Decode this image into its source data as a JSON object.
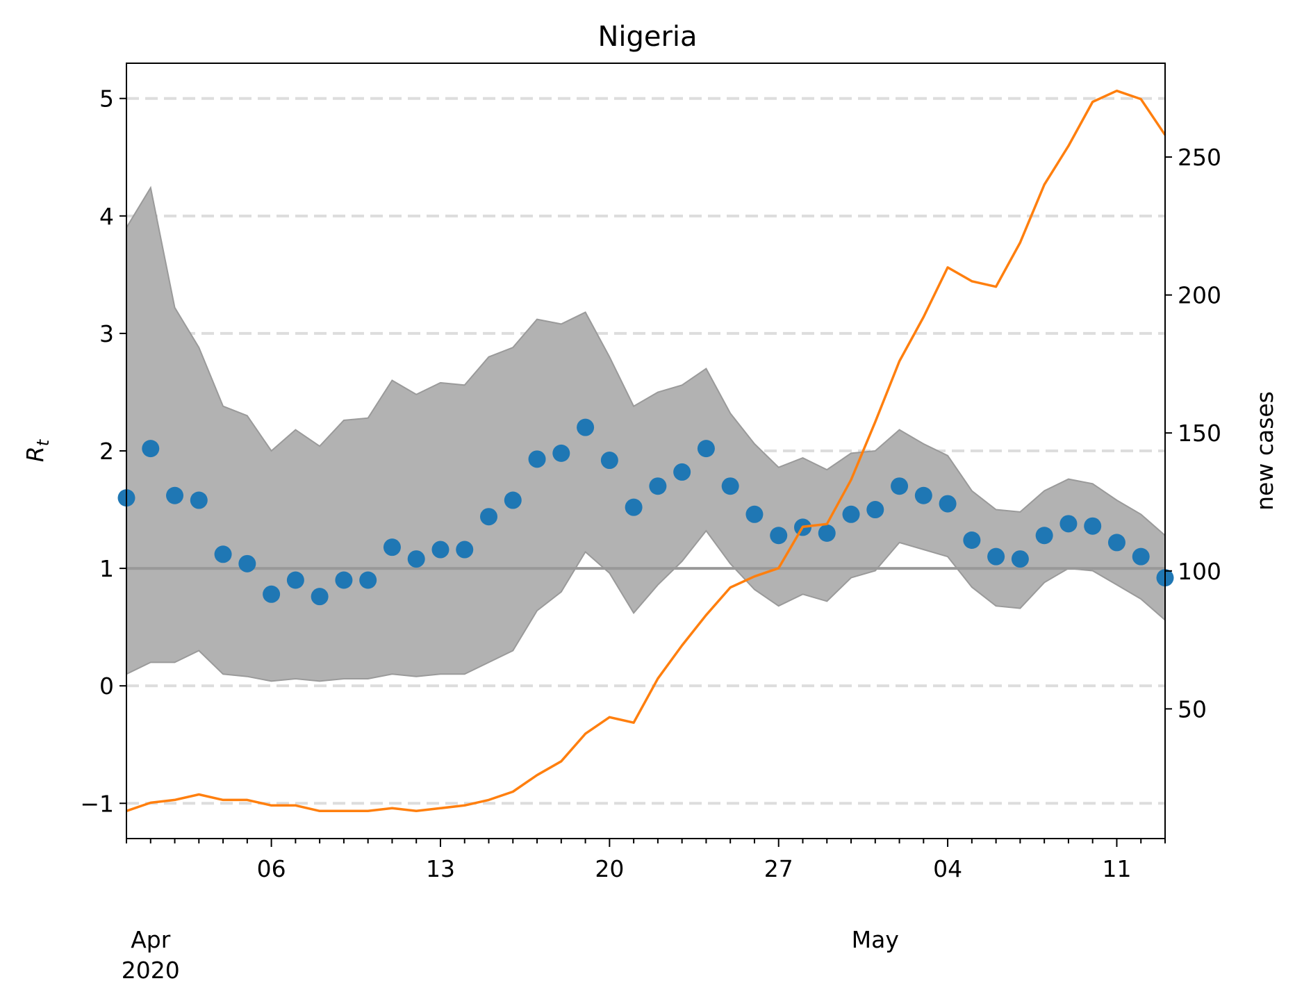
{
  "chart_data": {
    "type": "line",
    "title": "Nigeria",
    "ylabel_left": "R",
    "ylabel_left_subscript": "t",
    "ylabel_right": "new cases",
    "xlabel": "",
    "x_dates": [
      "2020-03-31",
      "2020-04-01",
      "2020-04-02",
      "2020-04-03",
      "2020-04-04",
      "2020-04-05",
      "2020-04-06",
      "2020-04-07",
      "2020-04-08",
      "2020-04-09",
      "2020-04-10",
      "2020-04-11",
      "2020-04-12",
      "2020-04-13",
      "2020-04-14",
      "2020-04-15",
      "2020-04-16",
      "2020-04-17",
      "2020-04-18",
      "2020-04-19",
      "2020-04-20",
      "2020-04-21",
      "2020-04-22",
      "2020-04-23",
      "2020-04-24",
      "2020-04-25",
      "2020-04-26",
      "2020-04-27",
      "2020-04-28",
      "2020-04-29",
      "2020-04-30",
      "2020-05-01",
      "2020-05-02",
      "2020-05-03",
      "2020-05-04",
      "2020-05-05",
      "2020-05-06",
      "2020-05-07",
      "2020-05-08",
      "2020-05-09",
      "2020-05-10",
      "2020-05-11",
      "2020-05-12",
      "2020-05-13"
    ],
    "x_ticks_major": [
      {
        "date": "2020-04-06",
        "label": "06"
      },
      {
        "date": "2020-04-13",
        "label": "13"
      },
      {
        "date": "2020-04-20",
        "label": "20"
      },
      {
        "date": "2020-04-27",
        "label": "27"
      },
      {
        "date": "2020-05-04",
        "label": "04"
      },
      {
        "date": "2020-05-11",
        "label": "11"
      }
    ],
    "x_month_labels": [
      {
        "date": "2020-04-01",
        "label": "Apr",
        "sub": "2020"
      },
      {
        "date": "2020-05-01",
        "label": "May",
        "sub": ""
      }
    ],
    "ylim_left": [
      -1.3,
      5.3
    ],
    "yticks_left": [
      -1,
      0,
      1,
      2,
      3,
      4,
      5
    ],
    "ylim_right": [
      3,
      284
    ],
    "yticks_right": [
      50,
      100,
      150,
      200,
      250
    ],
    "reference_line": 1,
    "grid": "dashed horizontal at left y-ticks",
    "series": [
      {
        "type": "scatter",
        "axis": "left",
        "color": "#1f77b4",
        "values": [
          1.6,
          2.02,
          1.62,
          1.58,
          1.12,
          1.04,
          0.78,
          0.9,
          0.76,
          0.9,
          0.9,
          1.18,
          1.08,
          1.16,
          1.16,
          1.44,
          1.58,
          1.93,
          1.98,
          2.2,
          1.92,
          1.52,
          1.7,
          1.82,
          2.02,
          1.7,
          1.46,
          1.28,
          1.35,
          1.3,
          1.46,
          1.5,
          1.7,
          1.62,
          1.55,
          1.24,
          1.1,
          1.08,
          1.28,
          1.38,
          1.36,
          1.22,
          1.1,
          0.92
        ]
      },
      {
        "type": "band",
        "axis": "left",
        "color": "#b2b2b2",
        "lower": [
          0.1,
          0.2,
          0.2,
          0.3,
          0.1,
          0.08,
          0.04,
          0.06,
          0.04,
          0.06,
          0.06,
          0.1,
          0.08,
          0.1,
          0.1,
          0.2,
          0.3,
          0.64,
          0.8,
          1.14,
          0.96,
          0.62,
          0.86,
          1.06,
          1.32,
          1.04,
          0.82,
          0.68,
          0.78,
          0.72,
          0.92,
          0.98,
          1.22,
          1.16,
          1.1,
          0.84,
          0.68,
          0.66,
          0.88,
          1.0,
          0.98,
          0.86,
          0.74,
          0.56
        ],
        "upper": [
          3.9,
          4.24,
          3.22,
          2.88,
          2.38,
          2.3,
          2.0,
          2.18,
          2.04,
          2.26,
          2.28,
          2.6,
          2.48,
          2.58,
          2.56,
          2.8,
          2.88,
          3.12,
          3.08,
          3.18,
          2.8,
          2.38,
          2.5,
          2.56,
          2.7,
          2.32,
          2.06,
          1.86,
          1.94,
          1.84,
          1.98,
          2.0,
          2.18,
          2.06,
          1.96,
          1.66,
          1.5,
          1.48,
          1.66,
          1.76,
          1.72,
          1.58,
          1.46,
          1.28
        ]
      },
      {
        "type": "line",
        "axis": "right",
        "color": "#ff7f0e",
        "values": [
          13,
          16,
          17,
          19,
          17,
          17,
          15,
          15,
          13,
          13,
          13,
          14,
          13,
          14,
          15,
          17,
          20,
          26,
          31,
          41,
          47,
          45,
          61,
          73,
          84,
          94,
          98,
          101,
          116,
          117,
          133,
          154,
          176,
          192,
          210,
          205,
          203,
          219,
          240,
          254,
          270,
          274,
          271,
          258
        ]
      }
    ]
  }
}
